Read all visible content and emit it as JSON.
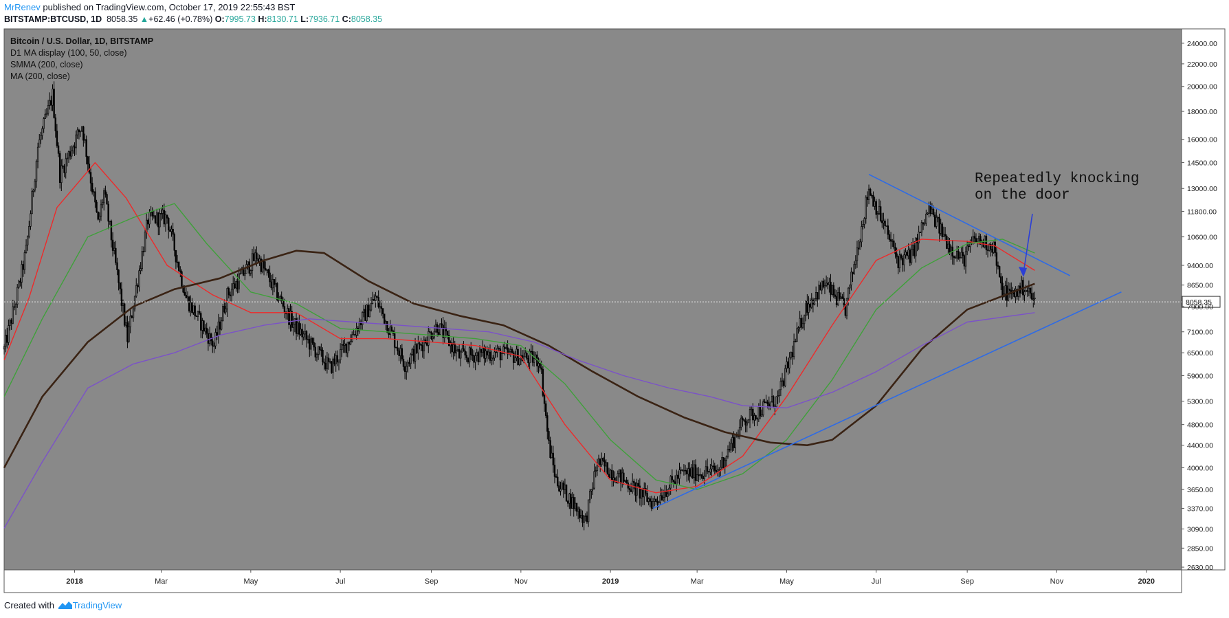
{
  "header": {
    "author": "MrRenev",
    "published_text": "published on TradingView.com, October 17, 2019 22:55:43 BST",
    "symbol": "BITSTAMP:BTCUSD, 1D",
    "last_price": "8058.35",
    "change_arrow": "▲",
    "change_text": "+62.46 (+0.78%)",
    "o_label": "O:",
    "o_value": "7995.73",
    "h_label": "H:",
    "h_value": "8130.71",
    "l_label": "L:",
    "l_value": "7936.71",
    "c_label": "C:",
    "c_value": "8058.35"
  },
  "legend": {
    "title": "Bitcoin / U.S. Dollar, 1D, BITSTAMP",
    "lines": [
      "D1 MA display (100, 50, close)",
      "SMMA (200, close)",
      "MA (200, close)"
    ]
  },
  "annotation": {
    "line1": "Repeatedly knocking",
    "line2": "on the door"
  },
  "footer": {
    "created_with": "Created with",
    "brand": "TradingView"
  },
  "colors": {
    "background": "#898989",
    "candle": "#000000",
    "ma_red": "#ee2a2a",
    "ma_green": "#3fa03a",
    "smma_brown": "#3a2314",
    "ma_purple": "#7b52c8",
    "trendline": "#2e6be6",
    "arrow": "#2b3fd6",
    "price_label_bg": "#ffffff"
  },
  "chart_data": {
    "type": "candlestick",
    "title": "Bitcoin / U.S. Dollar, 1D, BITSTAMP",
    "x_tick_labels": [
      "2018",
      "Mar",
      "May",
      "Jul",
      "Sep",
      "Nov",
      "2019",
      "Mar",
      "May",
      "Jul",
      "Sep",
      "Nov",
      "2020"
    ],
    "x_tick_dates": [
      "2018-01-01",
      "2018-03-01",
      "2018-05-01",
      "2018-07-01",
      "2018-09-01",
      "2018-11-01",
      "2019-01-01",
      "2019-03-01",
      "2019-05-01",
      "2019-07-01",
      "2019-09-01",
      "2019-11-01",
      "2020-01-01"
    ],
    "x_range": [
      "2017-11-14",
      "2020-01-25"
    ],
    "y_scale": "log",
    "y_tick_labels": [
      "24000.00",
      "22000.00",
      "20000.00",
      "18000.00",
      "16000.00",
      "14500.00",
      "13000.00",
      "11800.00",
      "10600.00",
      "9400.00",
      "8650.00",
      "7900.00",
      "7100.00",
      "6500.00",
      "5900.00",
      "5300.00",
      "4800.00",
      "4400.00",
      "4000.00",
      "3650.00",
      "3370.00",
      "3090.00",
      "2850.00",
      "2630.00"
    ],
    "y_ticks": [
      24000,
      22000,
      20000,
      18000,
      16000,
      14500,
      13000,
      11800,
      10600,
      9400,
      8650,
      7900,
      7100,
      6500,
      5900,
      5300,
      4800,
      4400,
      4000,
      3650,
      3370,
      3090,
      2850,
      2630
    ],
    "ylim": [
      2600,
      25500
    ],
    "last_price": 8058.35,
    "last_price_label": "8058.35",
    "price_path": [
      [
        "2017-11-14",
        6600
      ],
      [
        "2017-11-22",
        8100
      ],
      [
        "2017-11-29",
        10000
      ],
      [
        "2017-12-07",
        15500
      ],
      [
        "2017-12-17",
        19300
      ],
      [
        "2017-12-22",
        13800
      ],
      [
        "2017-12-28",
        15000
      ],
      [
        "2018-01-06",
        17000
      ],
      [
        "2018-01-17",
        11200
      ],
      [
        "2018-01-21",
        12800
      ],
      [
        "2018-02-06",
        6900
      ],
      [
        "2018-02-20",
        11400
      ],
      [
        "2018-03-05",
        11500
      ],
      [
        "2018-03-18",
        8200
      ],
      [
        "2018-04-06",
        6700
      ],
      [
        "2018-04-15",
        8300
      ],
      [
        "2018-05-05",
        9800
      ],
      [
        "2018-05-29",
        7400
      ],
      [
        "2018-06-24",
        6100
      ],
      [
        "2018-07-03",
        6600
      ],
      [
        "2018-07-25",
        8200
      ],
      [
        "2018-08-14",
        6200
      ],
      [
        "2018-09-05",
        7300
      ],
      [
        "2018-09-20",
        6400
      ],
      [
        "2018-10-15",
        6500
      ],
      [
        "2018-11-14",
        6300
      ],
      [
        "2018-11-20",
        4400
      ],
      [
        "2018-11-25",
        3800
      ],
      [
        "2018-12-15",
        3200
      ],
      [
        "2018-12-23",
        4100
      ],
      [
        "2019-01-10",
        3800
      ],
      [
        "2019-01-30",
        3450
      ],
      [
        "2019-02-18",
        3900
      ],
      [
        "2019-03-15",
        3950
      ],
      [
        "2019-04-02",
        4900
      ],
      [
        "2019-04-25",
        5350
      ],
      [
        "2019-05-14",
        7900
      ],
      [
        "2019-05-27",
        8700
      ],
      [
        "2019-06-10",
        7800
      ],
      [
        "2019-06-26",
        13000
      ],
      [
        "2019-07-16",
        9600
      ],
      [
        "2019-07-25",
        9800
      ],
      [
        "2019-08-06",
        11900
      ],
      [
        "2019-08-20",
        10200
      ],
      [
        "2019-08-29",
        9600
      ],
      [
        "2019-09-06",
        10500
      ],
      [
        "2019-09-19",
        10200
      ],
      [
        "2019-09-24",
        8500
      ],
      [
        "2019-10-01",
        8300
      ],
      [
        "2019-10-10",
        8600
      ],
      [
        "2019-10-17",
        8058
      ]
    ],
    "series": [
      {
        "name": "D1 MA display (100, 50, close)",
        "color": "#ee2a2a",
        "points": [
          [
            "2017-11-14",
            6300
          ],
          [
            "2017-12-01",
            8200
          ],
          [
            "2017-12-20",
            12000
          ],
          [
            "2018-01-15",
            14500
          ],
          [
            "2018-02-05",
            12500
          ],
          [
            "2018-03-05",
            9400
          ],
          [
            "2018-04-05",
            8300
          ],
          [
            "2018-05-01",
            7700
          ],
          [
            "2018-06-01",
            7700
          ],
          [
            "2018-07-01",
            6900
          ],
          [
            "2018-08-01",
            6900
          ],
          [
            "2018-09-01",
            6800
          ],
          [
            "2018-10-01",
            6700
          ],
          [
            "2018-11-01",
            6400
          ],
          [
            "2018-12-01",
            4800
          ],
          [
            "2019-01-01",
            3800
          ],
          [
            "2019-02-01",
            3600
          ],
          [
            "2019-03-01",
            3700
          ],
          [
            "2019-04-01",
            4200
          ],
          [
            "2019-05-01",
            5400
          ],
          [
            "2019-06-01",
            7300
          ],
          [
            "2019-07-01",
            9600
          ],
          [
            "2019-08-01",
            10500
          ],
          [
            "2019-09-01",
            10400
          ],
          [
            "2019-09-20",
            10200
          ],
          [
            "2019-10-17",
            9200
          ]
        ]
      },
      {
        "name": "D1 MA display (100, 50, close)",
        "color": "#3fa03a",
        "points": [
          [
            "2017-11-14",
            5400
          ],
          [
            "2017-12-10",
            7500
          ],
          [
            "2018-01-10",
            10600
          ],
          [
            "2018-02-10",
            11500
          ],
          [
            "2018-03-10",
            12200
          ],
          [
            "2018-04-01",
            10300
          ],
          [
            "2018-05-01",
            8400
          ],
          [
            "2018-06-01",
            8000
          ],
          [
            "2018-07-01",
            7200
          ],
          [
            "2018-08-01",
            7100
          ],
          [
            "2018-09-01",
            7000
          ],
          [
            "2018-10-01",
            6900
          ],
          [
            "2018-11-01",
            6700
          ],
          [
            "2018-12-01",
            5700
          ],
          [
            "2019-01-01",
            4500
          ],
          [
            "2019-02-01",
            3800
          ],
          [
            "2019-03-01",
            3650
          ],
          [
            "2019-04-01",
            3900
          ],
          [
            "2019-05-01",
            4500
          ],
          [
            "2019-06-01",
            5800
          ],
          [
            "2019-07-01",
            7800
          ],
          [
            "2019-08-01",
            9300
          ],
          [
            "2019-09-01",
            10300
          ],
          [
            "2019-09-25",
            10500
          ],
          [
            "2019-10-17",
            9900
          ]
        ]
      },
      {
        "name": "SMMA (200, close)",
        "color": "#3a2314",
        "points": [
          [
            "2017-11-14",
            4000
          ],
          [
            "2017-12-10",
            5400
          ],
          [
            "2018-01-10",
            6800
          ],
          [
            "2018-02-10",
            7900
          ],
          [
            "2018-03-10",
            8500
          ],
          [
            "2018-04-10",
            8900
          ],
          [
            "2018-05-10",
            9600
          ],
          [
            "2018-06-01",
            10000
          ],
          [
            "2018-06-20",
            9900
          ],
          [
            "2018-07-20",
            8800
          ],
          [
            "2018-08-20",
            8000
          ],
          [
            "2018-09-20",
            7600
          ],
          [
            "2018-10-20",
            7300
          ],
          [
            "2018-11-20",
            6700
          ],
          [
            "2018-12-20",
            6000
          ],
          [
            "2019-01-20",
            5400
          ],
          [
            "2019-02-20",
            4950
          ],
          [
            "2019-03-20",
            4650
          ],
          [
            "2019-04-20",
            4450
          ],
          [
            "2019-05-15",
            4400
          ],
          [
            "2019-06-01",
            4500
          ],
          [
            "2019-07-01",
            5200
          ],
          [
            "2019-08-01",
            6600
          ],
          [
            "2019-09-01",
            7800
          ],
          [
            "2019-10-17",
            8700
          ]
        ]
      },
      {
        "name": "MA (200, close)",
        "color": "#7b52c8",
        "points": [
          [
            "2017-11-14",
            3100
          ],
          [
            "2017-12-10",
            4100
          ],
          [
            "2018-01-10",
            5600
          ],
          [
            "2018-02-10",
            6200
          ],
          [
            "2018-03-10",
            6500
          ],
          [
            "2018-04-10",
            7000
          ],
          [
            "2018-05-10",
            7300
          ],
          [
            "2018-06-10",
            7500
          ],
          [
            "2018-07-10",
            7400
          ],
          [
            "2018-08-10",
            7300
          ],
          [
            "2018-09-10",
            7200
          ],
          [
            "2018-10-10",
            7100
          ],
          [
            "2018-11-10",
            6800
          ],
          [
            "2018-12-10",
            6300
          ],
          [
            "2019-01-10",
            5900
          ],
          [
            "2019-02-10",
            5600
          ],
          [
            "2019-03-10",
            5400
          ],
          [
            "2019-04-01",
            5200
          ],
          [
            "2019-05-01",
            5150
          ],
          [
            "2019-06-01",
            5500
          ],
          [
            "2019-07-01",
            6000
          ],
          [
            "2019-08-01",
            6700
          ],
          [
            "2019-09-01",
            7400
          ],
          [
            "2019-10-17",
            7700
          ]
        ]
      }
    ],
    "drawings": [
      {
        "name": "resistance-trendline",
        "color": "#2e6be6",
        "from": [
          "2019-06-26",
          13800
        ],
        "to": [
          "2019-11-10",
          9000
        ]
      },
      {
        "name": "support-trendline",
        "color": "#2e6be6",
        "from": [
          "2019-01-30",
          3370
        ],
        "to": [
          "2019-12-15",
          8400
        ]
      }
    ]
  }
}
